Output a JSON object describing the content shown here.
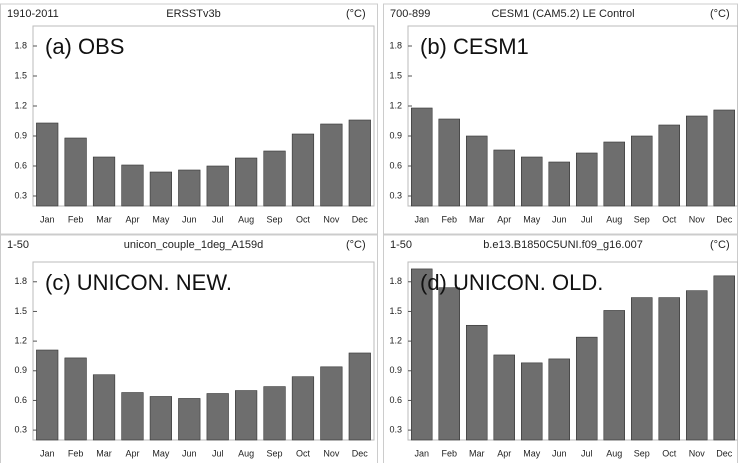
{
  "chart_data": [
    {
      "type": "bar",
      "period": "1910-2011",
      "title": "ERSSTv3b",
      "unit": "(°C)",
      "panel_label": "(a) OBS",
      "categories": [
        "Jan",
        "Feb",
        "Mar",
        "Apr",
        "May",
        "Jun",
        "Jul",
        "Aug",
        "Sep",
        "Oct",
        "Nov",
        "Dec"
      ],
      "values": [
        1.03,
        0.88,
        0.69,
        0.61,
        0.54,
        0.56,
        0.6,
        0.68,
        0.75,
        0.92,
        1.02,
        1.06
      ],
      "color": "#6e6e6e",
      "ylim": [
        0.2,
        2.0
      ],
      "yticks": [
        0.3,
        0.6,
        0.9,
        1.2,
        1.5,
        1.8
      ]
    },
    {
      "type": "bar",
      "period": "700-899",
      "title": "CESM1 (CAM5.2) LE Control",
      "unit": "(°C)",
      "panel_label": "(b) CESM1",
      "categories": [
        "Jan",
        "Feb",
        "Mar",
        "Apr",
        "May",
        "Jun",
        "Jul",
        "Aug",
        "Sep",
        "Oct",
        "Nov",
        "Dec"
      ],
      "values": [
        1.18,
        1.07,
        0.9,
        0.76,
        0.69,
        0.64,
        0.73,
        0.84,
        0.9,
        1.01,
        1.1,
        1.16
      ],
      "color": "#6e6e6e",
      "ylim": [
        0.2,
        2.0
      ],
      "yticks": [
        0.3,
        0.6,
        0.9,
        1.2,
        1.5,
        1.8
      ]
    },
    {
      "type": "bar",
      "period": "1-50",
      "title": "unicon_couple_1deg_A159d",
      "unit": "(°C)",
      "panel_label": "(c) UNICON. NEW.",
      "categories": [
        "Jan",
        "Feb",
        "Mar",
        "Apr",
        "May",
        "Jun",
        "Jul",
        "Aug",
        "Sep",
        "Oct",
        "Nov",
        "Dec"
      ],
      "values": [
        1.11,
        1.03,
        0.86,
        0.68,
        0.64,
        0.62,
        0.67,
        0.7,
        0.74,
        0.84,
        0.94,
        1.08
      ],
      "color": "#6e6e6e",
      "ylim": [
        0.2,
        2.0
      ],
      "yticks": [
        0.3,
        0.6,
        0.9,
        1.2,
        1.5,
        1.8
      ]
    },
    {
      "type": "bar",
      "period": "1-50",
      "title": "b.e13.B1850C5UNI.f09_g16.007",
      "unit": "(°C)",
      "panel_label": "(d) UNICON. OLD.",
      "categories": [
        "Jan",
        "Feb",
        "Mar",
        "Apr",
        "May",
        "Jun",
        "Jul",
        "Aug",
        "Sep",
        "Oct",
        "Nov",
        "Dec"
      ],
      "values": [
        1.93,
        1.74,
        1.36,
        1.06,
        0.98,
        1.02,
        1.24,
        1.51,
        1.64,
        1.64,
        1.71,
        1.86
      ],
      "color": "#6e6e6e",
      "ylim": [
        0.2,
        2.0
      ],
      "yticks": [
        0.3,
        0.6,
        0.9,
        1.2,
        1.5,
        1.8
      ]
    }
  ]
}
